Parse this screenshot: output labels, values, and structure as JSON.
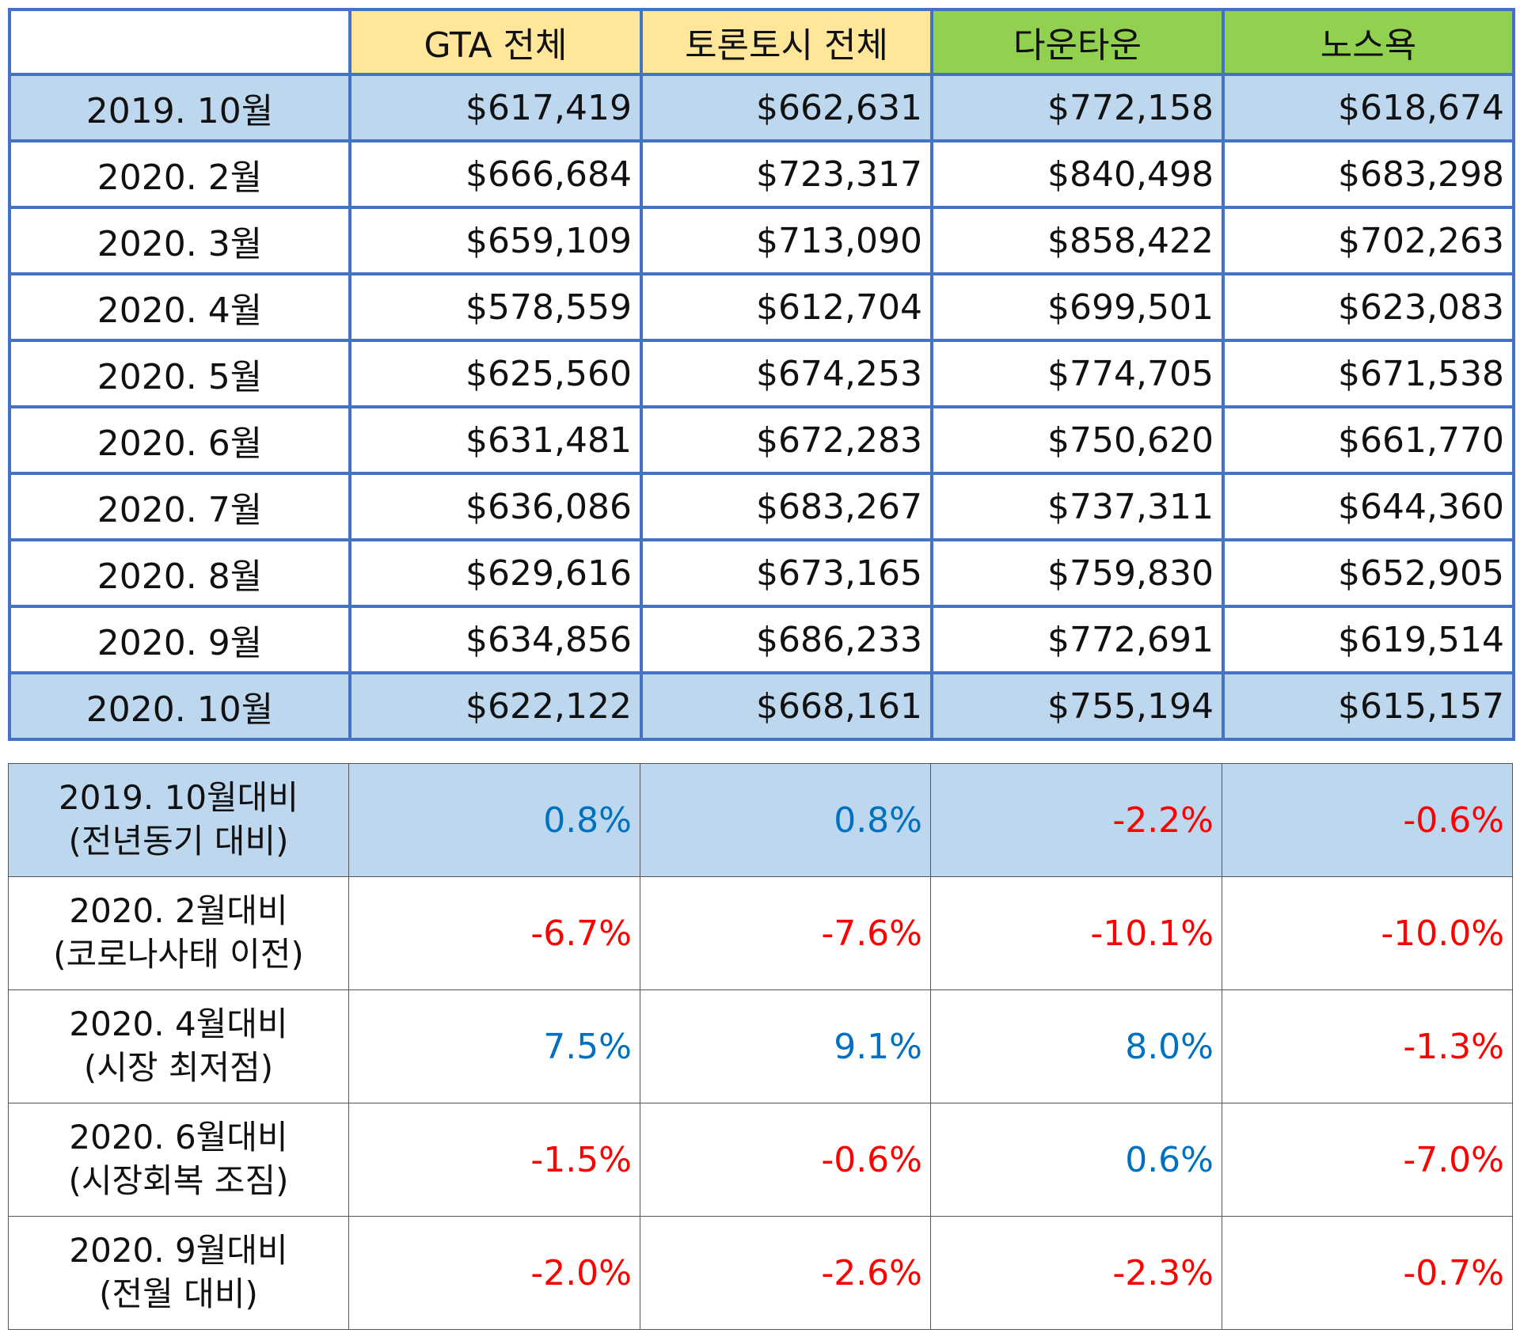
{
  "price_table": {
    "columns": [
      "",
      "GTA 전체",
      "토론토시 전체",
      "다운타운",
      "노스욕"
    ],
    "rows": [
      {
        "label": "2019. 10월",
        "values": [
          "$617,419",
          "$662,631",
          "$772,158",
          "$618,674"
        ],
        "highlight": true
      },
      {
        "label": "2020. 2월",
        "values": [
          "$666,684",
          "$723,317",
          "$840,498",
          "$683,298"
        ],
        "highlight": false
      },
      {
        "label": "2020. 3월",
        "values": [
          "$659,109",
          "$713,090",
          "$858,422",
          "$702,263"
        ],
        "highlight": false
      },
      {
        "label": "2020. 4월",
        "values": [
          "$578,559",
          "$612,704",
          "$699,501",
          "$623,083"
        ],
        "highlight": false
      },
      {
        "label": "2020. 5월",
        "values": [
          "$625,560",
          "$674,253",
          "$774,705",
          "$671,538"
        ],
        "highlight": false
      },
      {
        "label": "2020. 6월",
        "values": [
          "$631,481",
          "$672,283",
          "$750,620",
          "$661,770"
        ],
        "highlight": false
      },
      {
        "label": "2020. 7월",
        "values": [
          "$636,086",
          "$683,267",
          "$737,311",
          "$644,360"
        ],
        "highlight": false
      },
      {
        "label": "2020. 8월",
        "values": [
          "$629,616",
          "$673,165",
          "$759,830",
          "$652,905"
        ],
        "highlight": false
      },
      {
        "label": "2020. 9월",
        "values": [
          "$634,856",
          "$686,233",
          "$772,691",
          "$619,514"
        ],
        "highlight": false
      },
      {
        "label": "2020. 10월",
        "values": [
          "$622,122",
          "$668,161",
          "$755,194",
          "$615,157"
        ],
        "highlight": true
      }
    ]
  },
  "change_table": {
    "rows": [
      {
        "label_line1": "2019. 10월대비",
        "label_line2": "(전년동기 대비)",
        "values": [
          "0.8%",
          "0.8%",
          "-2.2%",
          "-0.6%"
        ],
        "highlight": true
      },
      {
        "label_line1": "2020. 2월대비",
        "label_line2": "(코로나사태 이전)",
        "values": [
          "-6.7%",
          "-7.6%",
          "-10.1%",
          "-10.0%"
        ],
        "highlight": false
      },
      {
        "label_line1": "2020. 4월대비",
        "label_line2": "(시장 최저점)",
        "values": [
          "7.5%",
          "9.1%",
          "8.0%",
          "-1.3%"
        ],
        "highlight": false
      },
      {
        "label_line1": "2020. 6월대비",
        "label_line2": "(시장회복 조짐)",
        "values": [
          "-1.5%",
          "-0.6%",
          "0.6%",
          "-7.0%"
        ],
        "highlight": false
      },
      {
        "label_line1": "2020. 9월대비",
        "label_line2": "(전월 대비)",
        "values": [
          "-2.0%",
          "-2.6%",
          "-2.3%",
          "-0.7%"
        ],
        "highlight": false
      }
    ]
  },
  "colors": {
    "border_blue": "#4472C4",
    "header_yellow": "#FFE699",
    "header_green": "#92D050",
    "highlight_row": "#BDD7EE",
    "positive": "#0070C0",
    "negative": "#FF0000"
  }
}
